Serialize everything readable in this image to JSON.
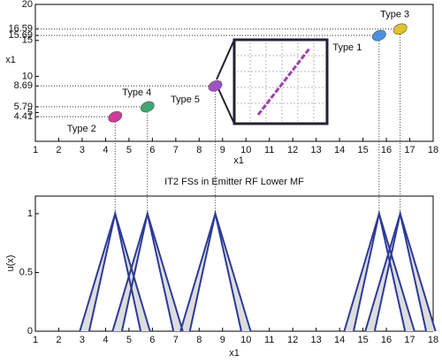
{
  "chart_data": [
    {
      "type": "scatter",
      "xlabel": "x1",
      "ylabel": "x1",
      "xlim": [
        1,
        18
      ],
      "xticks": [
        1,
        2,
        3,
        4,
        5,
        6,
        7,
        8,
        9,
        10,
        11,
        12,
        13,
        14,
        15,
        16,
        17,
        18
      ],
      "ylim": [
        1,
        20
      ],
      "yticks": [
        4.41,
        5,
        5.79,
        8.69,
        10,
        15,
        15.69,
        16.59,
        20
      ],
      "series": [
        {
          "name": "Type 2",
          "color": "#d03a9a",
          "x": [
            4.41
          ],
          "values": [
            4.41
          ]
        },
        {
          "name": "Type 4",
          "color": "#3aa870",
          "x": [
            5.79
          ],
          "values": [
            5.79
          ]
        },
        {
          "name": "Type 5",
          "color": "#a050c8",
          "x": [
            8.69
          ],
          "values": [
            8.69
          ]
        },
        {
          "name": "Type 1",
          "color": "#4a92e0",
          "x": [
            15.69
          ],
          "values": [
            15.69
          ]
        },
        {
          "name": "Type 3",
          "color": "#e0c22a",
          "x": [
            16.59
          ],
          "values": [
            16.59
          ]
        }
      ]
    },
    {
      "type": "line",
      "title": "IT2 FSs in Emitter RF Lower MF",
      "xlabel": "x1",
      "ylabel": "u(x)",
      "xlim": [
        1,
        18
      ],
      "xticks": [
        1,
        2,
        3,
        4,
        5,
        6,
        7,
        8,
        9,
        10,
        11,
        12,
        13,
        14,
        15,
        16,
        17,
        18
      ],
      "ylim": [
        0,
        1.15
      ],
      "yticks": [
        0,
        0.5,
        1
      ],
      "color": "#2c3a98",
      "series": [
        {
          "x": [
            2.9,
            4.41,
            5.5
          ],
          "values": [
            0,
            1,
            0
          ]
        },
        {
          "x": [
            3.3,
            4.41,
            5.9
          ],
          "values": [
            0,
            1,
            0
          ]
        },
        {
          "x": [
            4.3,
            5.79,
            6.9
          ],
          "values": [
            0,
            1,
            0
          ]
        },
        {
          "x": [
            4.7,
            5.79,
            7.3
          ],
          "values": [
            0,
            1,
            0
          ]
        },
        {
          "x": [
            7.2,
            8.69,
            9.8
          ],
          "values": [
            0,
            1,
            0
          ]
        },
        {
          "x": [
            7.6,
            8.69,
            10.2
          ],
          "values": [
            0,
            1,
            0
          ]
        },
        {
          "x": [
            14.2,
            15.69,
            16.8
          ],
          "values": [
            0,
            1,
            0
          ]
        },
        {
          "x": [
            14.6,
            15.69,
            17.2
          ],
          "values": [
            0,
            1,
            0
          ]
        },
        {
          "x": [
            15.1,
            16.59,
            17.7
          ],
          "values": [
            0,
            1,
            0
          ]
        },
        {
          "x": [
            15.5,
            16.59,
            18.1
          ],
          "values": [
            0,
            1,
            0
          ]
        }
      ]
    }
  ]
}
